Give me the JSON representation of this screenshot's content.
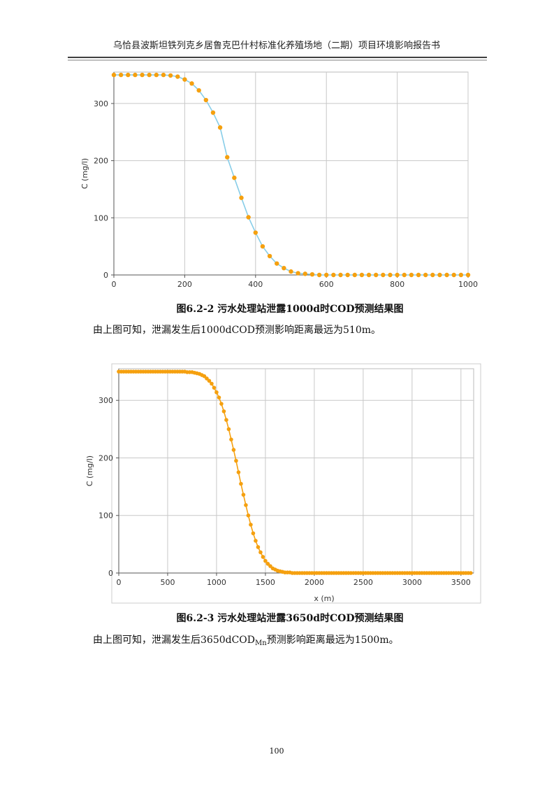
{
  "header": "乌恰县波斯坦铁列克乡居鲁克巴什村标准化养殖场地（二期）项目环境影响报告书",
  "chart_data": [
    {
      "type": "scatter",
      "title": "图6.2-2   污水处理站泄露1000d时COD预测结果图",
      "y_label": "C (mg/l)",
      "x": [
        0,
        20,
        40,
        60,
        80,
        100,
        120,
        140,
        160,
        180,
        200,
        220,
        240,
        260,
        280,
        300,
        320,
        340,
        360,
        380,
        400,
        420,
        440,
        460,
        480,
        500,
        520,
        540,
        560,
        580,
        600,
        620,
        640,
        660,
        680,
        700,
        720,
        740,
        760,
        780,
        800,
        820,
        840,
        860,
        880,
        900,
        920,
        940,
        960,
        980,
        1000
      ],
      "values": [
        350,
        350,
        350,
        350,
        350,
        350,
        350,
        350,
        349,
        347,
        342,
        335,
        323,
        306,
        284,
        258,
        206,
        170,
        135,
        101,
        74,
        50,
        33,
        20,
        12,
        6,
        3,
        2,
        1,
        0,
        0,
        0,
        0,
        0,
        0,
        0,
        0,
        0,
        0,
        0,
        0,
        0,
        0,
        0,
        0,
        0,
        0,
        0,
        0,
        0,
        0
      ],
      "xlim": [
        0,
        1000
      ],
      "xticks": [
        0,
        200,
        400,
        600,
        800,
        1000
      ],
      "ylim": [
        0,
        355
      ],
      "yticks": [
        0,
        100,
        200,
        300
      ],
      "grid": true,
      "line_color": "#87cde8",
      "marker_color": "#f5a00f"
    },
    {
      "type": "scatter",
      "title": "图6.2-3   污水处理站泄露3650d时COD预测结果图",
      "y_label": "C (mg/l)",
      "x_label": "x (m)",
      "x": [
        0,
        25,
        50,
        75,
        100,
        125,
        150,
        175,
        200,
        225,
        250,
        275,
        300,
        325,
        350,
        375,
        400,
        425,
        450,
        475,
        500,
        525,
        550,
        575,
        600,
        625,
        650,
        675,
        700,
        725,
        750,
        775,
        800,
        825,
        850,
        875,
        900,
        925,
        950,
        975,
        1000,
        1025,
        1050,
        1075,
        1100,
        1125,
        1150,
        1175,
        1200,
        1225,
        1250,
        1275,
        1300,
        1325,
        1350,
        1375,
        1400,
        1425,
        1450,
        1475,
        1500,
        1525,
        1550,
        1575,
        1600,
        1625,
        1650,
        1675,
        1700,
        1725,
        1750,
        1775,
        1800,
        1825,
        1850,
        1875,
        1900,
        1925,
        1950,
        1975,
        2000,
        2025,
        2050,
        2075,
        2100,
        2125,
        2150,
        2175,
        2200,
        2225,
        2250,
        2275,
        2300,
        2325,
        2350,
        2375,
        2400,
        2425,
        2450,
        2475,
        2500,
        2525,
        2550,
        2575,
        2600,
        2625,
        2650,
        2675,
        2700,
        2725,
        2750,
        2775,
        2800,
        2825,
        2850,
        2875,
        2900,
        2925,
        2950,
        2975,
        3000,
        3025,
        3050,
        3075,
        3100,
        3125,
        3150,
        3175,
        3200,
        3225,
        3250,
        3275,
        3300,
        3325,
        3350,
        3375,
        3400,
        3425,
        3450,
        3475,
        3500,
        3525,
        3550,
        3575,
        3600
      ],
      "values": [
        350,
        350,
        350,
        350,
        350,
        350,
        350,
        350,
        350,
        350,
        350,
        350,
        350,
        350,
        350,
        350,
        350,
        350,
        350,
        350,
        350,
        350,
        350,
        350,
        350,
        350,
        350,
        350,
        349,
        349,
        349,
        348,
        347,
        346,
        344,
        342,
        338,
        334,
        329,
        322,
        314,
        305,
        294,
        281,
        266,
        250,
        232,
        214,
        195,
        175,
        155,
        136,
        118,
        100,
        84,
        69,
        56,
        45,
        36,
        28,
        21,
        16,
        12,
        8,
        6,
        4,
        3,
        2,
        1,
        1,
        1,
        0,
        0,
        0,
        0,
        0,
        0,
        0,
        0,
        0,
        0,
        0,
        0,
        0,
        0,
        0,
        0,
        0,
        0,
        0,
        0,
        0,
        0,
        0,
        0,
        0,
        0,
        0,
        0,
        0,
        0,
        0,
        0,
        0,
        0,
        0,
        0,
        0,
        0,
        0,
        0,
        0,
        0,
        0,
        0,
        0,
        0,
        0,
        0,
        0,
        0,
        0,
        0,
        0,
        0,
        0,
        0,
        0,
        0,
        0,
        0,
        0,
        0,
        0,
        0,
        0,
        0,
        0,
        0,
        0,
        0,
        0,
        0,
        0,
        0
      ],
      "xlim": [
        0,
        3630
      ],
      "xticks": [
        0,
        500,
        1000,
        1500,
        2000,
        2500,
        3000,
        3500
      ],
      "ylim": [
        0,
        355
      ],
      "yticks": [
        0,
        100,
        200,
        300
      ],
      "grid": true,
      "line_color": "#f5a00f",
      "marker_color": "#f5a00f"
    }
  ],
  "paragraphs": [
    {
      "text": "由上图可知，泄漏发生后1000dCOD预测影响距离最远为510m。"
    },
    {
      "text": "由上图可知，泄漏发生后3650dCOD",
      "subscript": "Mn",
      "text_after": "预测影响距离最远为1500m。"
    }
  ],
  "page_number": "100"
}
